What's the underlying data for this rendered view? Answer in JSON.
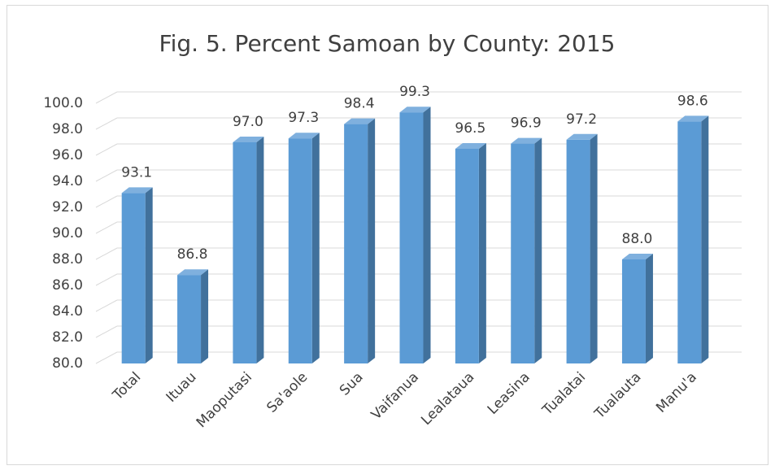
{
  "chart_data": {
    "type": "bar3d",
    "title": "Fig. 5. Percent Samoan by County: 2015",
    "categories": [
      "Total",
      "Ituau",
      "Maoputasi",
      "Sa'aole",
      "Sua",
      "Vaifanua",
      "Lealataua",
      "Leasina",
      "Tualatai",
      "Tualauta",
      "Manu'a"
    ],
    "values": [
      93.1,
      86.8,
      97.0,
      97.3,
      98.4,
      99.3,
      96.5,
      96.9,
      97.2,
      88.0,
      98.6
    ],
    "value_labels": [
      "93.1",
      "86.8",
      "97.0",
      "97.3",
      "98.4",
      "99.3",
      "96.5",
      "96.9",
      "97.2",
      "88.0",
      "98.6"
    ],
    "color": "#5b9bd5",
    "ylim": [
      80,
      100
    ],
    "yticks": [
      {
        "value": 80,
        "label": "80.0"
      },
      {
        "value": 82,
        "label": "82.0"
      },
      {
        "value": 84,
        "label": "84.0"
      },
      {
        "value": 86,
        "label": "86.0"
      },
      {
        "value": 88,
        "label": "88.0"
      },
      {
        "value": 90,
        "label": "90.0"
      },
      {
        "value": 92,
        "label": "92.0"
      },
      {
        "value": 94,
        "label": "94.0"
      },
      {
        "value": 96,
        "label": "96.0"
      },
      {
        "value": 98,
        "label": "98.0"
      },
      {
        "value": 100,
        "label": "100.0"
      }
    ],
    "grid": true
  }
}
